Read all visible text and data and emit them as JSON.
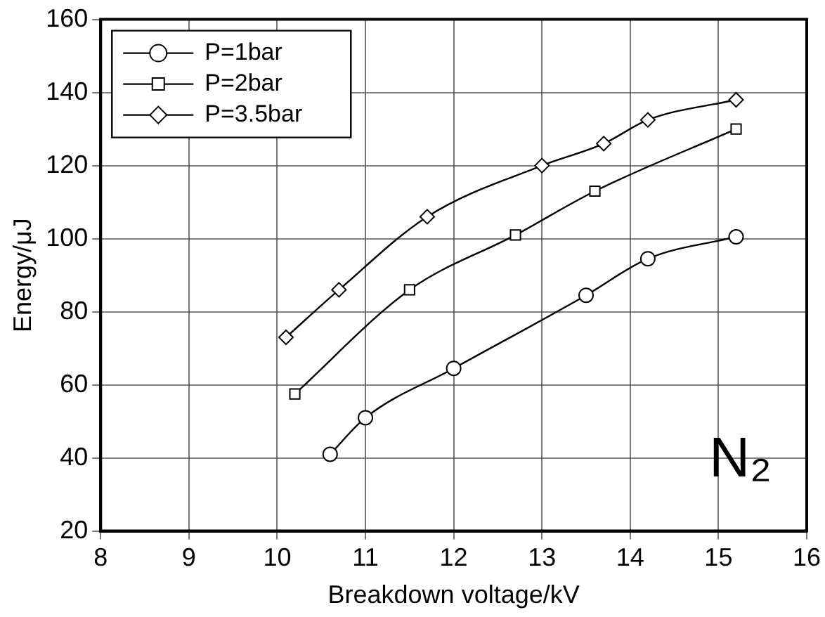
{
  "chart_data": {
    "type": "line",
    "xlabel": "Breakdown voltage/kV",
    "ylabel": "Energy/μJ",
    "xlim": [
      8,
      16
    ],
    "xticks": [
      8,
      9,
      10,
      11,
      12,
      13,
      14,
      15,
      16
    ],
    "ylim": [
      20,
      160
    ],
    "yticks": [
      20,
      40,
      60,
      80,
      100,
      120,
      140,
      160
    ],
    "grid": true,
    "legend": "top left",
    "line_style": "solid",
    "annotations": [
      "N₂"
    ],
    "series": [
      {
        "name": "P=1bar",
        "color": "#000000",
        "marker": "circle",
        "x": [
          10.6,
          11.0,
          12.0,
          13.5,
          14.2,
          15.2
        ],
        "values": [
          41,
          51,
          64.5,
          84.5,
          94.5,
          100.5
        ]
      },
      {
        "name": "P=2bar",
        "color": "#000000",
        "marker": "square",
        "x": [
          10.2,
          11.5,
          12.7,
          13.6,
          15.2
        ],
        "values": [
          57.5,
          86,
          101,
          113,
          130
        ]
      },
      {
        "name": "P=3.5bar",
        "color": "#000000",
        "marker": "diamond",
        "x": [
          10.1,
          10.7,
          11.7,
          13.0,
          13.7,
          14.2,
          15.2
        ],
        "values": [
          73,
          86,
          106,
          120,
          126,
          132.5,
          138
        ]
      }
    ]
  }
}
